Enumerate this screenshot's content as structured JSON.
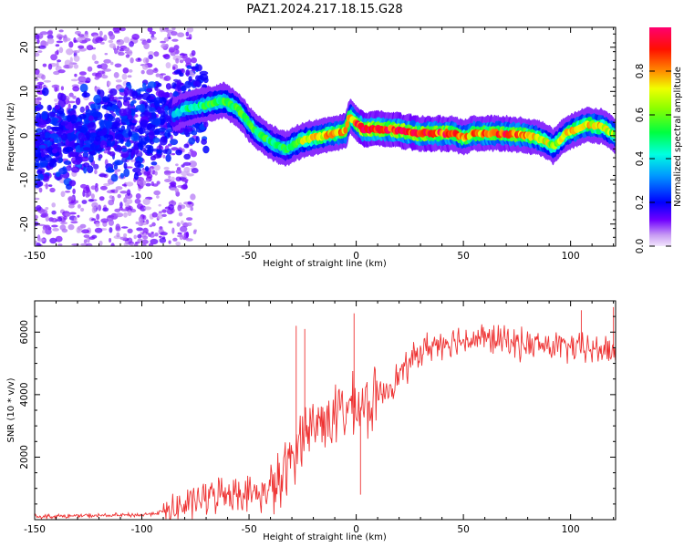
{
  "figure": {
    "title": "PAZ1.2024.217.18.15.G28"
  },
  "chart_data": [
    {
      "type": "heatmap",
      "xlabel": "Height of straight line (km)",
      "ylabel": "Frequency (Hz)",
      "xlim": [
        -150,
        121
      ],
      "ylim": [
        -25,
        24.5
      ],
      "xticks": [
        -150,
        -100,
        -50,
        0,
        50,
        100
      ],
      "yticks": [
        -20,
        -10,
        0,
        10,
        20
      ],
      "colorbar": {
        "label": "Normalized spectral amplitude",
        "range": [
          0,
          1
        ],
        "ticks": [
          "0.0",
          "0.2",
          "0.4",
          "0.6",
          "0.8"
        ],
        "colormap": "gist_rainbow",
        "colors": [
          "#d9b8f5",
          "#5a00ff",
          "#0000ff",
          "#00c8ff",
          "#00ff60",
          "#c8ff00",
          "#ff8000",
          "#ff0000",
          "#ff0060"
        ]
      },
      "ridge": [
        {
          "x": -150,
          "y": -1.5,
          "amp": 0.2
        },
        {
          "x": -130,
          "y": -0.5,
          "amp": 0.25
        },
        {
          "x": -110,
          "y": 1.5,
          "amp": 0.25
        },
        {
          "x": -90,
          "y": 3.5,
          "amp": 0.3
        },
        {
          "x": -80,
          "y": 6,
          "amp": 0.45
        },
        {
          "x": -70,
          "y": 7,
          "amp": 0.5
        },
        {
          "x": -62,
          "y": 8,
          "amp": 0.55
        },
        {
          "x": -55,
          "y": 6,
          "amp": 0.55
        },
        {
          "x": -48,
          "y": 1.5,
          "amp": 0.55
        },
        {
          "x": -40,
          "y": -1.5,
          "amp": 0.5
        },
        {
          "x": -33,
          "y": -3,
          "amp": 0.5
        },
        {
          "x": -25,
          "y": -1,
          "amp": 0.65
        },
        {
          "x": -15,
          "y": 0,
          "amp": 0.75
        },
        {
          "x": -5,
          "y": 1,
          "amp": 0.8
        },
        {
          "x": -3,
          "y": 4.5,
          "amp": 0.7
        },
        {
          "x": 3,
          "y": 1.5,
          "amp": 0.95
        },
        {
          "x": 15,
          "y": 1.5,
          "amp": 0.9
        },
        {
          "x": 30,
          "y": 0.5,
          "amp": 0.9
        },
        {
          "x": 45,
          "y": 0.5,
          "amp": 0.85
        },
        {
          "x": 50,
          "y": -0.5,
          "amp": 0.75
        },
        {
          "x": 55,
          "y": 0.5,
          "amp": 0.8
        },
        {
          "x": 70,
          "y": 0.5,
          "amp": 0.85
        },
        {
          "x": 80,
          "y": 0,
          "amp": 0.8
        },
        {
          "x": 88,
          "y": -1,
          "amp": 0.7
        },
        {
          "x": 92,
          "y": -2.5,
          "amp": 0.6
        },
        {
          "x": 98,
          "y": 0.5,
          "amp": 0.7
        },
        {
          "x": 108,
          "y": 2.5,
          "amp": 0.75
        },
        {
          "x": 115,
          "y": 2,
          "amp": 0.7
        },
        {
          "x": 121,
          "y": 0,
          "amp": 0.6
        }
      ]
    },
    {
      "type": "line",
      "xlabel": "Height of straight line (km)",
      "ylabel": "SNR (10 * v/v)",
      "xlim": [
        -150,
        121
      ],
      "ylim": [
        0,
        7000
      ],
      "xticks": [
        -150,
        -100,
        -50,
        0,
        50,
        100
      ],
      "yticks": [
        2000,
        4000,
        6000
      ],
      "color": "#ee3333",
      "trend": [
        {
          "x": -150,
          "y": 100
        },
        {
          "x": -100,
          "y": 150
        },
        {
          "x": -85,
          "y": 300
        },
        {
          "x": -75,
          "y": 600
        },
        {
          "x": -60,
          "y": 900
        },
        {
          "x": -45,
          "y": 800
        },
        {
          "x": -35,
          "y": 1200
        },
        {
          "x": -25,
          "y": 2800
        },
        {
          "x": -15,
          "y": 3200
        },
        {
          "x": -5,
          "y": 3500
        },
        {
          "x": 0,
          "y": 3600
        },
        {
          "x": 5,
          "y": 3600
        },
        {
          "x": 10,
          "y": 3900
        },
        {
          "x": 20,
          "y": 4600
        },
        {
          "x": 30,
          "y": 5400
        },
        {
          "x": 40,
          "y": 5700
        },
        {
          "x": 60,
          "y": 5800
        },
        {
          "x": 80,
          "y": 5600
        },
        {
          "x": 100,
          "y": 5500
        },
        {
          "x": 121,
          "y": 5400
        }
      ],
      "spikes": [
        {
          "x": -28,
          "y": 6200
        },
        {
          "x": -24,
          "y": 6100
        },
        {
          "x": -1,
          "y": 6600
        },
        {
          "x": 2,
          "y": 800
        },
        {
          "x": 105,
          "y": 6700
        },
        {
          "x": 120,
          "y": 6800
        }
      ]
    }
  ]
}
